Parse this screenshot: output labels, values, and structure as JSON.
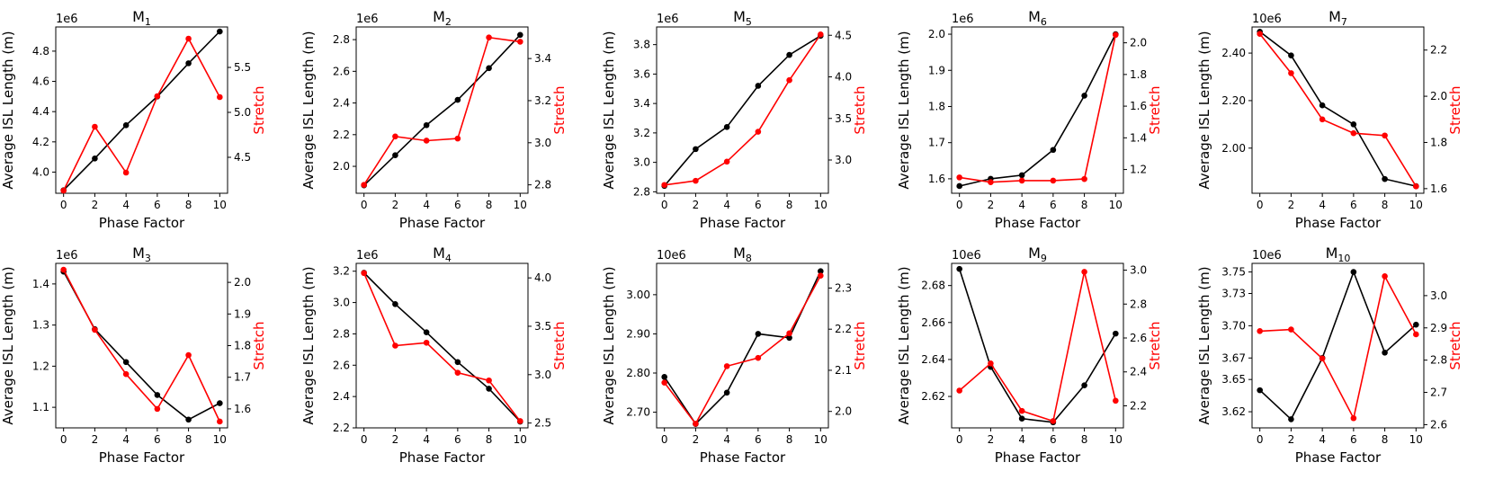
{
  "colors": {
    "isl": "#000000",
    "stretch": "#ff0000"
  },
  "chart_data": [
    {
      "type": "line",
      "title": "M",
      "title_sub": "1",
      "offset_label": "1e6",
      "xlabel": "Phase Factor",
      "ylabel": "Average ISL Length (m)",
      "y2label": "Stretch",
      "x": [
        0,
        2,
        4,
        6,
        8,
        10
      ],
      "xticks": [
        "0",
        "2",
        "4",
        "6",
        "8",
        "10"
      ],
      "ylim": [
        3.86,
        4.96
      ],
      "yticks": [
        {
          "v": 4.0,
          "label": "4.0"
        },
        {
          "v": 4.2,
          "label": "4.2"
        },
        {
          "v": 4.4,
          "label": "4.4"
        },
        {
          "v": 4.6,
          "label": "4.6"
        },
        {
          "v": 4.8,
          "label": "4.8"
        }
      ],
      "y2lim": [
        4.1,
        5.95
      ],
      "y2ticks": [
        {
          "v": 4.5,
          "label": "4.5"
        },
        {
          "v": 5.0,
          "label": "5.0"
        },
        {
          "v": 5.5,
          "label": "5.5"
        }
      ],
      "series": [
        {
          "values": [
            3.88,
            4.09,
            4.31,
            4.5,
            4.72,
            4.93
          ]
        },
        {
          "values": [
            4.13,
            4.84,
            4.33,
            5.18,
            5.82,
            5.17
          ]
        }
      ]
    },
    {
      "type": "line",
      "title": "M",
      "title_sub": "2",
      "offset_label": "1e6",
      "xlabel": "Phase Factor",
      "ylabel": "Average ISL Length (m)",
      "y2label": "Stretch",
      "x": [
        0,
        2,
        4,
        6,
        8,
        10
      ],
      "xticks": [
        "0",
        "2",
        "4",
        "6",
        "8",
        "10"
      ],
      "ylim": [
        1.83,
        2.88
      ],
      "yticks": [
        {
          "v": 2.0,
          "label": "2.0"
        },
        {
          "v": 2.2,
          "label": "2.2"
        },
        {
          "v": 2.4,
          "label": "2.4"
        },
        {
          "v": 2.6,
          "label": "2.6"
        },
        {
          "v": 2.8,
          "label": "2.8"
        }
      ],
      "y2lim": [
        2.76,
        3.55
      ],
      "y2ticks": [
        {
          "v": 2.8,
          "label": "2.8"
        },
        {
          "v": 3.0,
          "label": "3.0"
        },
        {
          "v": 3.2,
          "label": "3.2"
        },
        {
          "v": 3.4,
          "label": "3.4"
        }
      ],
      "series": [
        {
          "values": [
            1.88,
            2.07,
            2.26,
            2.42,
            2.62,
            2.83
          ]
        },
        {
          "values": [
            2.8,
            3.03,
            3.01,
            3.02,
            3.5,
            3.48
          ]
        }
      ]
    },
    {
      "type": "line",
      "title": "M",
      "title_sub": "5",
      "offset_label": "1e6",
      "xlabel": "Phase Factor",
      "ylabel": "Average ISL Length (m)",
      "y2label": "Stretch",
      "x": [
        0,
        2,
        4,
        6,
        8,
        10
      ],
      "xticks": [
        "0",
        "2",
        "4",
        "6",
        "8",
        "10"
      ],
      "ylim": [
        2.79,
        3.92
      ],
      "yticks": [
        {
          "v": 2.8,
          "label": "2.8"
        },
        {
          "v": 3.0,
          "label": "3.0"
        },
        {
          "v": 3.2,
          "label": "3.2"
        },
        {
          "v": 3.4,
          "label": "3.4"
        },
        {
          "v": 3.6,
          "label": "3.6"
        },
        {
          "v": 3.8,
          "label": "3.8"
        }
      ],
      "y2lim": [
        2.6,
        4.6
      ],
      "y2ticks": [
        {
          "v": 3.0,
          "label": "3.0"
        },
        {
          "v": 3.5,
          "label": "3.5"
        },
        {
          "v": 4.0,
          "label": "4.0"
        },
        {
          "v": 4.5,
          "label": "4.5"
        }
      ],
      "series": [
        {
          "values": [
            2.84,
            3.09,
            3.24,
            3.52,
            3.73,
            3.86
          ]
        },
        {
          "values": [
            2.7,
            2.75,
            2.98,
            3.34,
            3.96,
            4.51
          ]
        }
      ]
    },
    {
      "type": "line",
      "title": "M",
      "title_sub": "6",
      "offset_label": "1e6",
      "xlabel": "Phase Factor",
      "ylabel": "Average ISL Length (m)",
      "y2label": "Stretch",
      "x": [
        0,
        2,
        4,
        6,
        8,
        10
      ],
      "xticks": [
        "0",
        "2",
        "4",
        "6",
        "8",
        "10"
      ],
      "ylim": [
        1.56,
        2.02
      ],
      "yticks": [
        {
          "v": 1.6,
          "label": "1.6"
        },
        {
          "v": 1.7,
          "label": "1.7"
        },
        {
          "v": 1.8,
          "label": "1.8"
        },
        {
          "v": 1.9,
          "label": "1.9"
        },
        {
          "v": 2.0,
          "label": "2.0"
        }
      ],
      "y2lim": [
        1.05,
        2.1
      ],
      "y2ticks": [
        {
          "v": 1.2,
          "label": "1.2"
        },
        {
          "v": 1.4,
          "label": "1.4"
        },
        {
          "v": 1.6,
          "label": "1.6"
        },
        {
          "v": 1.8,
          "label": "1.8"
        },
        {
          "v": 2.0,
          "label": "2.0"
        }
      ],
      "series": [
        {
          "values": [
            1.58,
            1.6,
            1.61,
            1.68,
            1.83,
            2.0
          ]
        },
        {
          "values": [
            1.15,
            1.12,
            1.13,
            1.13,
            1.14,
            2.05
          ]
        }
      ]
    },
    {
      "type": "line",
      "title": "M",
      "title_sub": "7",
      "offset_label": "10e6",
      "xlabel": "Phase Factor",
      "ylabel": "Average ISL Length (m)",
      "y2label": "Stretch",
      "x": [
        0,
        2,
        4,
        6,
        8,
        10
      ],
      "xticks": [
        "0",
        "2",
        "4",
        "6",
        "8",
        "10"
      ],
      "ylim": [
        1.81,
        2.51
      ],
      "yticks": [
        {
          "v": 2.0,
          "label": "2.00"
        },
        {
          "v": 2.2,
          "label": "2.20"
        },
        {
          "v": 2.4,
          "label": "2.40"
        }
      ],
      "y2lim": [
        1.58,
        2.3
      ],
      "y2ticks": [
        {
          "v": 1.6,
          "label": "1.6"
        },
        {
          "v": 1.8,
          "label": "1.8"
        },
        {
          "v": 2.0,
          "label": "2.0"
        },
        {
          "v": 2.2,
          "label": "2.2"
        }
      ],
      "series": [
        {
          "values": [
            2.49,
            2.39,
            2.18,
            2.1,
            1.87,
            1.84
          ]
        },
        {
          "values": [
            2.27,
            2.1,
            1.9,
            1.84,
            1.83,
            1.61
          ]
        }
      ]
    },
    {
      "type": "line",
      "title": "M",
      "title_sub": "3",
      "offset_label": "1e6",
      "xlabel": "Phase Factor",
      "ylabel": "Average ISL Length (m)",
      "y2label": "Stretch",
      "x": [
        0,
        2,
        4,
        6,
        8,
        10
      ],
      "xticks": [
        "0",
        "2",
        "4",
        "6",
        "8",
        "10"
      ],
      "ylim": [
        1.05,
        1.45
      ],
      "yticks": [
        {
          "v": 1.1,
          "label": "1.1"
        },
        {
          "v": 1.2,
          "label": "1.2"
        },
        {
          "v": 1.3,
          "label": "1.3"
        },
        {
          "v": 1.4,
          "label": "1.4"
        }
      ],
      "y2lim": [
        1.54,
        2.06
      ],
      "y2ticks": [
        {
          "v": 1.6,
          "label": "1.6"
        },
        {
          "v": 1.7,
          "label": "1.7"
        },
        {
          "v": 1.8,
          "label": "1.8"
        },
        {
          "v": 1.9,
          "label": "1.9"
        },
        {
          "v": 2.0,
          "label": "2.0"
        }
      ],
      "series": [
        {
          "values": [
            1.43,
            1.29,
            1.21,
            1.13,
            1.07,
            1.11
          ]
        },
        {
          "values": [
            2.04,
            1.85,
            1.71,
            1.6,
            1.77,
            1.56
          ]
        }
      ]
    },
    {
      "type": "line",
      "title": "M",
      "title_sub": "4",
      "offset_label": "1e6",
      "xlabel": "Phase Factor",
      "ylabel": "Average ISL Length (m)",
      "y2label": "Stretch",
      "x": [
        0,
        2,
        4,
        6,
        8,
        10
      ],
      "xticks": [
        "0",
        "2",
        "4",
        "6",
        "8",
        "10"
      ],
      "ylim": [
        2.2,
        3.25
      ],
      "yticks": [
        {
          "v": 2.2,
          "label": "2.2"
        },
        {
          "v": 2.4,
          "label": "2.4"
        },
        {
          "v": 2.6,
          "label": "2.6"
        },
        {
          "v": 2.8,
          "label": "2.8"
        },
        {
          "v": 3.0,
          "label": "3.0"
        },
        {
          "v": 3.2,
          "label": "3.2"
        }
      ],
      "y2lim": [
        2.45,
        4.15
      ],
      "y2ticks": [
        {
          "v": 2.5,
          "label": "2.5"
        },
        {
          "v": 3.0,
          "label": "3.0"
        },
        {
          "v": 3.5,
          "label": "3.5"
        },
        {
          "v": 4.0,
          "label": "4.0"
        }
      ],
      "series": [
        {
          "values": [
            3.19,
            2.99,
            2.81,
            2.62,
            2.45,
            2.24
          ]
        },
        {
          "values": [
            4.05,
            3.3,
            3.33,
            3.02,
            2.94,
            2.52
          ]
        }
      ]
    },
    {
      "type": "line",
      "title": "M",
      "title_sub": "8",
      "offset_label": "10e6",
      "xlabel": "Phase Factor",
      "ylabel": "Average ISL Length (m)",
      "y2label": "Stretch",
      "x": [
        0,
        2,
        4,
        6,
        8,
        10
      ],
      "xticks": [
        "0",
        "2",
        "4",
        "6",
        "8",
        "10"
      ],
      "ylim": [
        2.66,
        3.08
      ],
      "yticks": [
        {
          "v": 2.7,
          "label": "2.70"
        },
        {
          "v": 2.8,
          "label": "2.80"
        },
        {
          "v": 2.9,
          "label": "2.90"
        },
        {
          "v": 3.0,
          "label": "3.00"
        }
      ],
      "y2lim": [
        1.96,
        2.36
      ],
      "y2ticks": [
        {
          "v": 2.0,
          "label": "2.0"
        },
        {
          "v": 2.1,
          "label": "2.1"
        },
        {
          "v": 2.2,
          "label": "2.2"
        },
        {
          "v": 2.3,
          "label": "2.3"
        }
      ],
      "series": [
        {
          "values": [
            2.79,
            2.67,
            2.75,
            2.9,
            2.89,
            3.06
          ]
        },
        {
          "values": [
            2.07,
            1.97,
            2.11,
            2.13,
            2.19,
            2.33
          ]
        }
      ]
    },
    {
      "type": "line",
      "title": "M",
      "title_sub": "9",
      "offset_label": "10e6",
      "xlabel": "Phase Factor",
      "ylabel": "Average ISL Length (m)",
      "y2label": "Stretch",
      "x": [
        0,
        2,
        4,
        6,
        8,
        10
      ],
      "xticks": [
        "0",
        "2",
        "4",
        "6",
        "8",
        "10"
      ],
      "ylim": [
        2.603,
        2.692
      ],
      "yticks": [
        {
          "v": 2.62,
          "label": "2.62"
        },
        {
          "v": 2.64,
          "label": "2.64"
        },
        {
          "v": 2.66,
          "label": "2.66"
        },
        {
          "v": 2.68,
          "label": "2.68"
        }
      ],
      "y2lim": [
        2.07,
        3.04
      ],
      "y2ticks": [
        {
          "v": 2.2,
          "label": "2.2"
        },
        {
          "v": 2.4,
          "label": "2.4"
        },
        {
          "v": 2.6,
          "label": "2.6"
        },
        {
          "v": 2.8,
          "label": "2.8"
        },
        {
          "v": 3.0,
          "label": "3.0"
        }
      ],
      "series": [
        {
          "values": [
            2.689,
            2.636,
            2.608,
            2.606,
            2.626,
            2.654
          ]
        },
        {
          "values": [
            2.29,
            2.45,
            2.17,
            2.11,
            2.99,
            2.23
          ]
        }
      ]
    },
    {
      "type": "line",
      "title": "M",
      "title_sub": "10",
      "offset_label": "10e6",
      "xlabel": "Phase Factor",
      "ylabel": "Average ISL Length (m)",
      "y2label": "Stretch",
      "x": [
        0,
        2,
        4,
        6,
        8,
        10
      ],
      "xticks": [
        "0",
        "2",
        "4",
        "6",
        "8",
        "10"
      ],
      "ylim": [
        3.605,
        3.758
      ],
      "yticks": [
        {
          "v": 3.62,
          "label": "3.62"
        },
        {
          "v": 3.65,
          "label": "3.65"
        },
        {
          "v": 3.67,
          "label": "3.67"
        },
        {
          "v": 3.7,
          "label": "3.70"
        },
        {
          "v": 3.73,
          "label": "3.73"
        },
        {
          "v": 3.75,
          "label": "3.75"
        }
      ],
      "y2lim": [
        2.59,
        3.1
      ],
      "y2ticks": [
        {
          "v": 2.6,
          "label": "2.6"
        },
        {
          "v": 2.7,
          "label": "2.7"
        },
        {
          "v": 2.8,
          "label": "2.8"
        },
        {
          "v": 2.9,
          "label": "2.9"
        },
        {
          "v": 3.0,
          "label": "3.0"
        }
      ],
      "series": [
        {
          "values": [
            3.64,
            3.613,
            3.67,
            3.75,
            3.675,
            3.701
          ]
        },
        {
          "values": [
            2.89,
            2.895,
            2.805,
            2.62,
            3.06,
            2.88
          ]
        }
      ]
    }
  ]
}
